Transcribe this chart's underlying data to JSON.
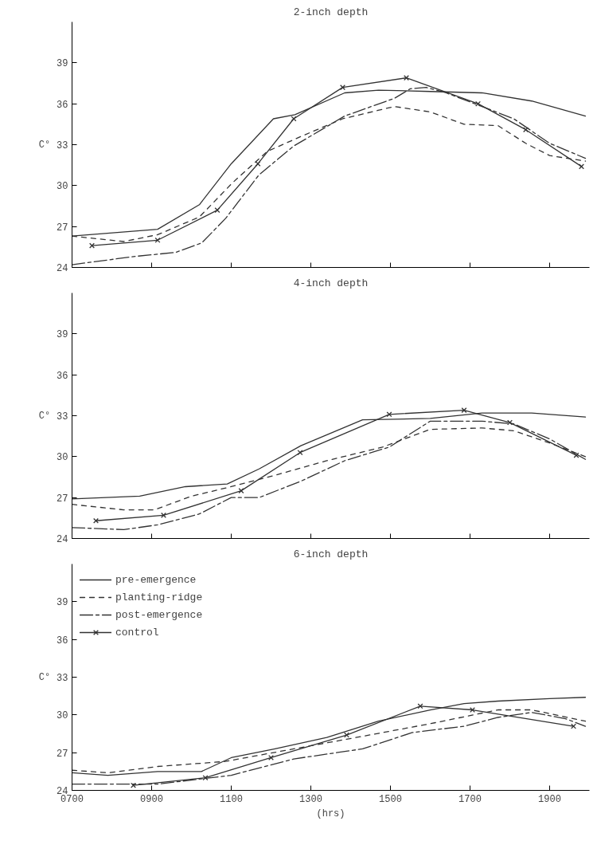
{
  "chart_data": [
    {
      "type": "line",
      "title": "2-inch depth",
      "ylabel": "C°",
      "xlim": [
        700,
        2000
      ],
      "ylim": [
        24,
        42
      ],
      "xticks": [
        700,
        900,
        1100,
        1300,
        1500,
        1700,
        1900
      ],
      "yticks": [
        24,
        27,
        30,
        33,
        36,
        39
      ],
      "tick_labels": "y",
      "grid": false,
      "legend": false,
      "series": [
        {
          "color": "#333333",
          "line_style": "solid",
          "marker": "none",
          "x": [
            700,
            915,
            1020,
            1100,
            1206,
            1260,
            1385,
            1470,
            1600,
            1730,
            1855,
            1990
          ],
          "values": [
            26.3,
            26.8,
            28.6,
            31.6,
            34.9,
            35.2,
            36.8,
            37.0,
            36.9,
            36.8,
            36.2,
            35.1
          ]
        },
        {
          "color": "#333333",
          "line_style": "dashed",
          "marker": "none",
          "x": [
            700,
            830,
            915,
            1020,
            1103,
            1190,
            1275,
            1380,
            1510,
            1600,
            1685,
            1770,
            1840,
            1900,
            1990
          ],
          "values": [
            26.3,
            25.9,
            26.4,
            27.7,
            30.2,
            32.5,
            33.6,
            34.9,
            35.8,
            35.4,
            34.5,
            34.4,
            33.1,
            32.2,
            31.8
          ]
        },
        {
          "color": "#333333",
          "line_style": "dashdot",
          "marker": "none",
          "x": [
            700,
            855,
            960,
            1026,
            1086,
            1170,
            1257,
            1385,
            1510,
            1550,
            1590,
            1640,
            1730,
            1810,
            1900,
            1990
          ],
          "values": [
            24.2,
            24.8,
            25.1,
            25.8,
            27.6,
            30.8,
            32.9,
            35.1,
            36.4,
            37.1,
            37.2,
            36.8,
            35.8,
            34.9,
            33.1,
            32.0
          ]
        },
        {
          "color": "#333333",
          "line_style": "solid",
          "marker": "cross",
          "x": [
            750,
            915,
            1065,
            1167,
            1257,
            1380,
            1540,
            1720,
            1840,
            1980
          ],
          "values": [
            25.6,
            26.0,
            28.2,
            31.6,
            34.9,
            37.2,
            37.9,
            36.0,
            34.1,
            31.4
          ]
        }
      ]
    },
    {
      "type": "line",
      "title": "4-inch depth",
      "ylabel": "C°",
      "xlim": [
        700,
        2000
      ],
      "ylim": [
        24,
        42
      ],
      "xticks": [
        700,
        900,
        1100,
        1300,
        1500,
        1700,
        1900
      ],
      "yticks": [
        24,
        27,
        30,
        33,
        36,
        39
      ],
      "tick_labels": "y",
      "grid": false,
      "legend": false,
      "series": [
        {
          "color": "#333333",
          "line_style": "solid",
          "marker": "none",
          "x": [
            700,
            870,
            985,
            1090,
            1170,
            1275,
            1430,
            1600,
            1730,
            1855,
            1990
          ],
          "values": [
            26.9,
            27.1,
            27.8,
            28.0,
            29.1,
            30.8,
            32.7,
            32.8,
            33.2,
            33.2,
            32.9
          ]
        },
        {
          "color": "#333333",
          "line_style": "dashed",
          "marker": "none",
          "x": [
            700,
            830,
            907,
            1000,
            1100,
            1206,
            1340,
            1480,
            1600,
            1730,
            1810,
            1900,
            1990
          ],
          "values": [
            26.5,
            26.1,
            26.1,
            27.1,
            27.8,
            28.6,
            29.7,
            30.7,
            32.0,
            32.1,
            31.9,
            31.0,
            30.0
          ]
        },
        {
          "color": "#333333",
          "line_style": "dashdot",
          "marker": "none",
          "x": [
            700,
            830,
            915,
            1020,
            1100,
            1170,
            1275,
            1385,
            1497,
            1600,
            1730,
            1810,
            1900,
            1990
          ],
          "values": [
            24.8,
            24.65,
            25.0,
            25.8,
            27.0,
            27.0,
            28.2,
            29.7,
            30.7,
            32.6,
            32.6,
            32.4,
            31.3,
            29.8
          ]
        },
        {
          "color": "#333333",
          "line_style": "solid",
          "marker": "cross",
          "x": [
            760,
            930,
            1125,
            1273,
            1497,
            1685,
            1800,
            1967
          ],
          "values": [
            25.3,
            25.7,
            27.5,
            30.3,
            33.1,
            33.4,
            32.5,
            30.1
          ]
        }
      ]
    },
    {
      "type": "line",
      "title": "6-inch depth",
      "xlabel": "(hrs)",
      "ylabel": "C°",
      "xlim": [
        700,
        2000
      ],
      "ylim": [
        24,
        42
      ],
      "xticks": [
        {
          "value": 700,
          "label": "0700"
        },
        {
          "value": 900,
          "label": "0900"
        },
        {
          "value": 1100,
          "label": "1100"
        },
        {
          "value": 1300,
          "label": "1300"
        },
        {
          "value": 1500,
          "label": "1500"
        },
        {
          "value": 1700,
          "label": "1700"
        },
        {
          "value": 1900,
          "label": "1900"
        }
      ],
      "yticks": [
        24,
        27,
        30,
        33,
        36,
        39
      ],
      "grid": false,
      "legend": "top left",
      "series": [
        {
          "name": "pre-emergence",
          "color": "#333333",
          "line_style": "solid",
          "marker": "none",
          "x": [
            700,
            790,
            915,
            1025,
            1100,
            1210,
            1340,
            1470,
            1600,
            1685,
            1770,
            1900,
            1990
          ],
          "values": [
            25.4,
            25.2,
            25.5,
            25.5,
            26.6,
            27.3,
            28.2,
            29.5,
            30.4,
            30.9,
            31.1,
            31.3,
            31.4
          ]
        },
        {
          "name": "planting-ridge",
          "color": "#333333",
          "line_style": "dashed",
          "marker": "none",
          "x": [
            700,
            790,
            915,
            1085,
            1257,
            1430,
            1600,
            1770,
            1855,
            1990
          ],
          "values": [
            25.6,
            25.4,
            25.9,
            26.3,
            27.3,
            28.3,
            29.3,
            30.4,
            30.4,
            29.5
          ]
        },
        {
          "name": "post-emergence",
          "color": "#333333",
          "line_style": "dashdot",
          "marker": "none",
          "x": [
            700,
            915,
            1100,
            1257,
            1430,
            1555,
            1685,
            1770,
            1855,
            1940,
            1990
          ],
          "values": [
            24.5,
            24.5,
            25.2,
            26.5,
            27.3,
            28.6,
            29.1,
            29.8,
            30.2,
            29.7,
            29.1
          ]
        },
        {
          "name": "control",
          "color": "#333333",
          "line_style": "solid",
          "marker": "cross",
          "x": [
            854,
            1035,
            1200,
            1390,
            1575,
            1706,
            1960
          ],
          "values": [
            24.4,
            25.0,
            26.6,
            28.4,
            30.7,
            30.4,
            29.1
          ]
        }
      ]
    }
  ]
}
